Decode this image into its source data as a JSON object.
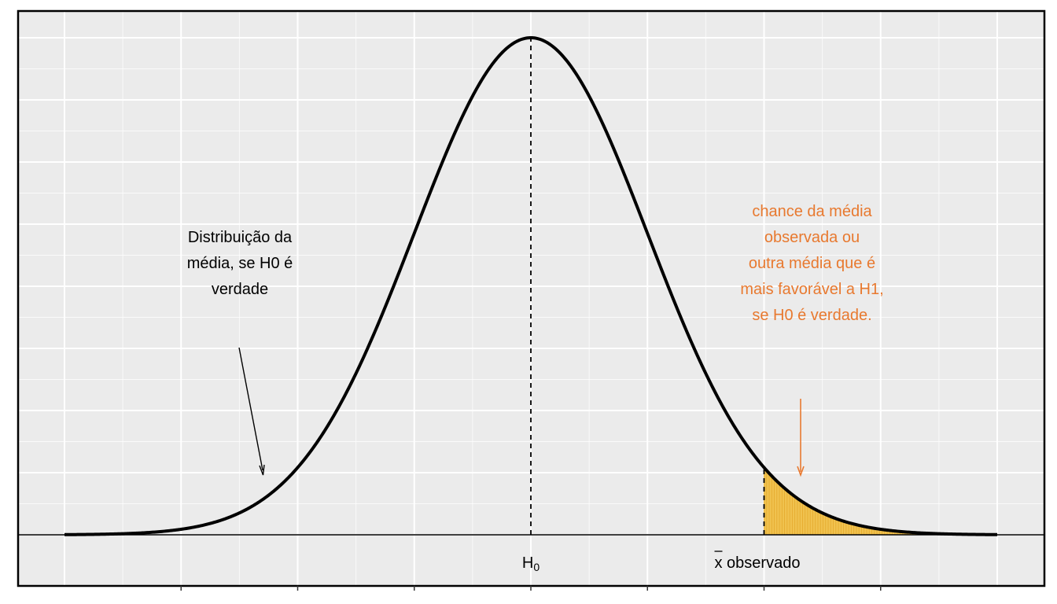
{
  "chart_data": {
    "type": "area",
    "title": "",
    "xlabel": "",
    "ylabel": "",
    "distribution": "normal",
    "mean": 0,
    "sd": 1,
    "xlim": [
      -4,
      4
    ],
    "shaded_from": 2,
    "colors": {
      "curve": "#000000",
      "shade": "#f0c24f",
      "shade_line": "#e5a92c",
      "panel": "#ebebeb",
      "grid": "#ffffff",
      "annotation": "#e8792f"
    },
    "x_labels": [
      {
        "x": 0,
        "main": "H",
        "sub": "0"
      },
      {
        "x": 2,
        "bar_symbol": "x",
        "text": " observado"
      }
    ],
    "annotations": {
      "left_lines": [
        "Distribuição da",
        "média, se H0 é",
        "verdade"
      ],
      "right_lines": [
        "chance da média",
        "observada ou",
        "outra média que é",
        "mais favorável a H1,",
        "se H0 é verdade."
      ]
    }
  }
}
